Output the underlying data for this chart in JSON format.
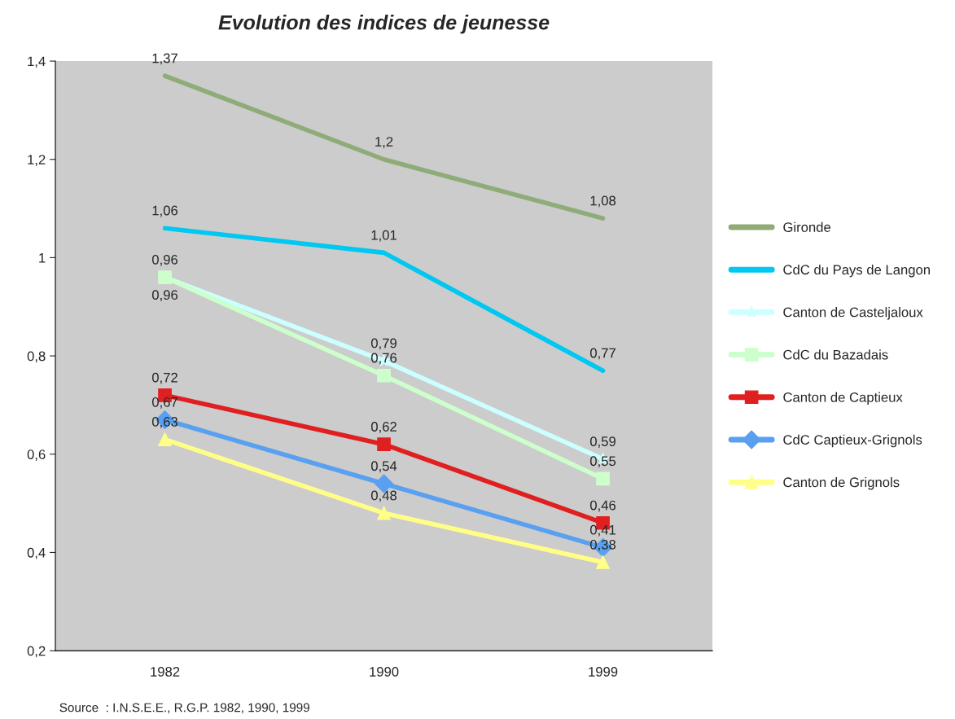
{
  "chart_data": {
    "type": "line",
    "title": "Evolution des indices de jeunesse",
    "categories": [
      "1982",
      "1990",
      "1999"
    ],
    "ylim": [
      0.2,
      1.4
    ],
    "yticks": [
      {
        "value": 0.2,
        "label": "0,2"
      },
      {
        "value": 0.4,
        "label": "0,4"
      },
      {
        "value": 0.6,
        "label": "0,6"
      },
      {
        "value": 0.8,
        "label": "0,8"
      },
      {
        "value": 1,
        "label": "1"
      },
      {
        "value": 1.2,
        "label": "1,2"
      },
      {
        "value": 1.4,
        "label": "1,4"
      }
    ],
    "grid": false,
    "legend": "right",
    "series": [
      {
        "name": "Gironde",
        "color": "#8fac78",
        "marker": "none",
        "values": [
          1.37,
          1.2,
          1.08
        ],
        "value_labels": [
          "1,37",
          "1,2",
          "1,08"
        ]
      },
      {
        "name": "CdC du Pays de Langon",
        "color": "#00c8f0",
        "marker": "none",
        "values": [
          1.06,
          1.01,
          0.77
        ],
        "value_labels": [
          "1,06",
          "1,01",
          "0,77"
        ]
      },
      {
        "name": "Canton de Casteljaloux",
        "color": "#ccffff",
        "marker": "star",
        "values": [
          0.96,
          0.79,
          0.59
        ],
        "value_labels": [
          "0,96",
          "0,79",
          "0,59"
        ]
      },
      {
        "name": "CdC du Bazadais",
        "color": "#ccffcc",
        "marker": "square",
        "values": [
          0.96,
          0.76,
          0.55
        ],
        "value_labels": [
          "0,96",
          "0,76",
          "0,55"
        ]
      },
      {
        "name": "Canton de Captieux",
        "color": "#e02020",
        "marker": "square",
        "values": [
          0.72,
          0.62,
          0.46
        ],
        "value_labels": [
          "0,72",
          "0,62",
          "0,46"
        ]
      },
      {
        "name": "CdC Captieux-Grignols",
        "color": "#5aa0f0",
        "marker": "diamond",
        "values": [
          0.67,
          0.54,
          0.41
        ],
        "value_labels": [
          "0,67",
          "0,54",
          "0,41"
        ]
      },
      {
        "name": "Canton de Grignols",
        "color": "#ffff88",
        "marker": "triangle",
        "values": [
          0.63,
          0.48,
          0.38
        ],
        "value_labels": [
          "0,63",
          "0,48",
          "0,38"
        ]
      }
    ],
    "annotations": [
      "Source  : I.N.S.E.E., R.G.P. 1982, 1990, 1999"
    ]
  }
}
